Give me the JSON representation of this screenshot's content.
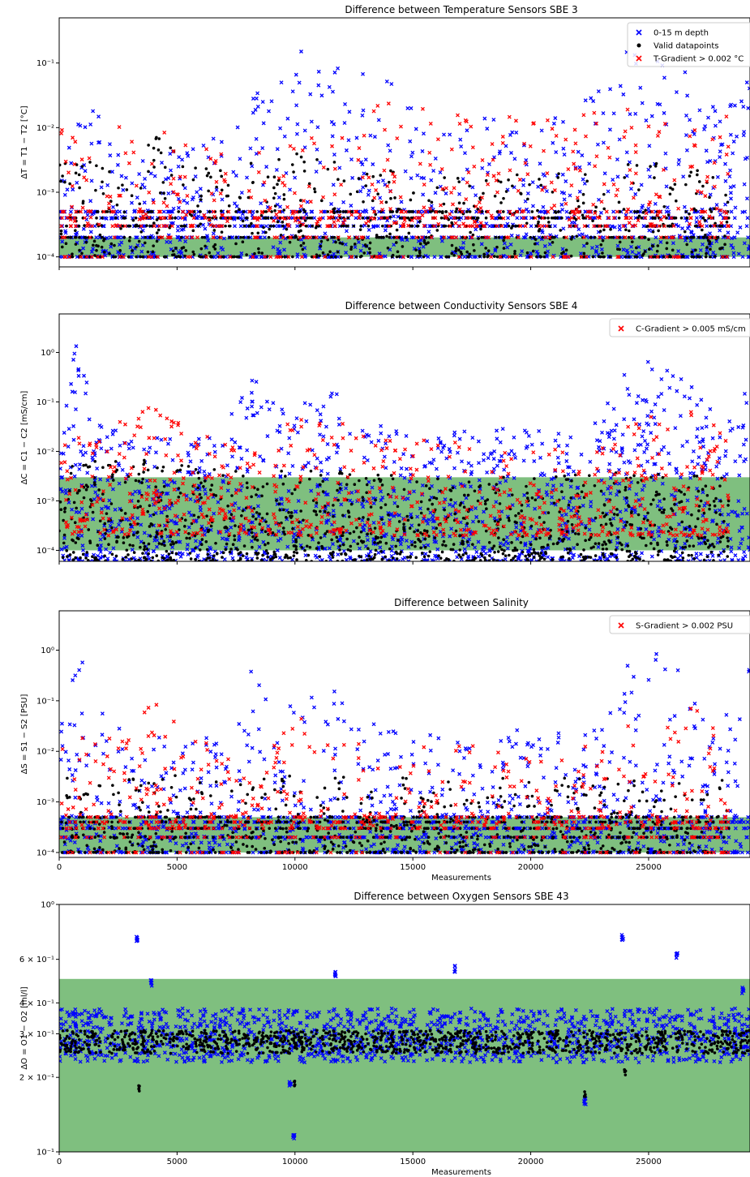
{
  "chart_data": [
    {
      "type": "scatter",
      "title": "Difference between Temperature Sensors SBE 3",
      "ylabel": "ΔT = T1 − T2 [°C]",
      "xlabel": "",
      "xlim": [
        0,
        29300
      ],
      "ylim": [
        7e-05,
        0.5
      ],
      "yscale": "log",
      "yticks": [
        0.0001,
        0.001,
        0.01,
        0.1
      ],
      "ytick_labels": [
        "10⁻⁴",
        "10⁻³",
        "10⁻²",
        "10⁻¹"
      ],
      "xtick_labels_shown": false,
      "band": {
        "from": 0.0001,
        "to": 0.0002,
        "color": "#7fbf7f"
      },
      "legend": {
        "position": "top-right",
        "entries": [
          {
            "label": "0-15 m depth",
            "marker": "x",
            "color": "#0000ff"
          },
          {
            "label": "Valid datapoints",
            "marker": "dot",
            "color": "#000000"
          },
          {
            "label": "T-Gradient > 0.002 °C",
            "marker": "x",
            "color": "#ff0000"
          }
        ]
      },
      "series": [
        {
          "role": "surface",
          "color": "#0000ff",
          "marker": "x",
          "envelope": [
            [
              0,
              0.03
            ],
            [
              1500,
              0.02
            ],
            [
              3000,
              0.004
            ],
            [
              5000,
              0.005
            ],
            [
              7000,
              0.008
            ],
            [
              8000,
              0.06
            ],
            [
              9000,
              0.03
            ],
            [
              10000,
              0.2
            ],
            [
              12000,
              0.1
            ],
            [
              13500,
              0.1
            ],
            [
              15000,
              0.02
            ],
            [
              17000,
              0.02
            ],
            [
              20000,
              0.015
            ],
            [
              22000,
              0.02
            ],
            [
              24000,
              0.15
            ],
            [
              25500,
              0.2
            ],
            [
              27000,
              0.05
            ],
            [
              28000,
              0.02
            ],
            [
              29300,
              0.08
            ]
          ],
          "floor": 0.0001
        },
        {
          "role": "valid",
          "color": "#000000",
          "marker": "dot",
          "envelope": [
            [
              0,
              0.004
            ],
            [
              3000,
              0.002
            ],
            [
              4000,
              0.008
            ],
            [
              6000,
              0.003
            ],
            [
              8000,
              0.003
            ],
            [
              10000,
              0.004
            ],
            [
              12000,
              0.003
            ],
            [
              15000,
              0.002
            ],
            [
              20000,
              0.002
            ],
            [
              25000,
              0.003
            ],
            [
              28200,
              0.002
            ]
          ],
          "floor": 0.0001
        },
        {
          "role": "gradient",
          "color": "#ff0000",
          "marker": "x",
          "envelope": [
            [
              0,
              0.01
            ],
            [
              2000,
              0.01
            ],
            [
              4000,
              0.015
            ],
            [
              6000,
              0.005
            ],
            [
              8000,
              0.004
            ],
            [
              10000,
              0.006
            ],
            [
              12000,
              0.01
            ],
            [
              14000,
              0.03
            ],
            [
              16000,
              0.02
            ],
            [
              18000,
              0.03
            ],
            [
              20000,
              0.02
            ],
            [
              22000,
              0.04
            ],
            [
              24000,
              0.02
            ],
            [
              26000,
              0.015
            ],
            [
              28000,
              0.02
            ]
          ],
          "floor": 0.0003
        }
      ]
    },
    {
      "type": "scatter",
      "title": "Difference between Conductivity Sensors SBE 4",
      "ylabel": "ΔC = C1 − C2 [mS/cm]",
      "xlabel": "",
      "xlim": [
        0,
        29300
      ],
      "ylim": [
        6e-05,
        6
      ],
      "yscale": "log",
      "yticks": [
        0.0001,
        0.001,
        0.01,
        0.1,
        1
      ],
      "ytick_labels": [
        "10⁻⁴",
        "10⁻³",
        "10⁻²",
        "10⁻¹",
        "10⁰"
      ],
      "xtick_labels_shown": false,
      "band": {
        "from": 0.0001,
        "to": 0.003,
        "color": "#7fbf7f"
      },
      "legend": {
        "position": "top-right",
        "entries": [
          {
            "label": "C-Gradient > 0.005 mS/cm",
            "marker": "x",
            "color": "#ff0000"
          }
        ]
      },
      "series": [
        {
          "role": "surface",
          "color": "#0000ff",
          "marker": "x",
          "envelope": [
            [
              0,
              0.05
            ],
            [
              800,
              2.0
            ],
            [
              1500,
              0.05
            ],
            [
              3000,
              0.02
            ],
            [
              5000,
              0.02
            ],
            [
              7000,
              0.02
            ],
            [
              8000,
              0.6
            ],
            [
              9000,
              0.1
            ],
            [
              10000,
              0.1
            ],
            [
              12000,
              0.2
            ],
            [
              13000,
              0.05
            ],
            [
              15000,
              0.02
            ],
            [
              18000,
              0.03
            ],
            [
              20000,
              0.03
            ],
            [
              22000,
              0.02
            ],
            [
              24000,
              0.5
            ],
            [
              25500,
              0.8
            ],
            [
              27000,
              0.3
            ],
            [
              28000,
              0.05
            ],
            [
              29300,
              0.5
            ]
          ],
          "floor": 6e-05
        },
        {
          "role": "valid",
          "color": "#000000",
          "marker": "dot",
          "envelope": [
            [
              0,
              0.005
            ],
            [
              3000,
              0.008
            ],
            [
              6000,
              0.005
            ],
            [
              8000,
              0.004
            ],
            [
              12000,
              0.004
            ],
            [
              15000,
              0.003
            ],
            [
              20000,
              0.003
            ],
            [
              25000,
              0.004
            ],
            [
              28000,
              0.003
            ]
          ],
          "floor": 6e-05
        },
        {
          "role": "gradient",
          "color": "#ff0000",
          "marker": "x",
          "envelope": [
            [
              0,
              0.02
            ],
            [
              2000,
              0.03
            ],
            [
              4000,
              0.1
            ],
            [
              6000,
              0.02
            ],
            [
              8000,
              0.02
            ],
            [
              10000,
              0.05
            ],
            [
              12000,
              0.05
            ],
            [
              14000,
              0.02
            ],
            [
              17000,
              0.02
            ],
            [
              20000,
              0.01
            ],
            [
              23000,
              0.02
            ],
            [
              25000,
              0.05
            ],
            [
              27000,
              0.1
            ],
            [
              28000,
              0.03
            ]
          ],
          "floor": 0.0002
        }
      ]
    },
    {
      "type": "scatter",
      "title": "Difference between Salinity",
      "ylabel": "ΔS = S1 − S2 [PSU]",
      "xlabel": "Measurements",
      "xlim": [
        0,
        29300
      ],
      "ylim": [
        8e-05,
        6
      ],
      "yscale": "log",
      "yticks": [
        0.0001,
        0.001,
        0.01,
        0.1,
        1
      ],
      "ytick_labels": [
        "10⁻⁴",
        "10⁻³",
        "10⁻²",
        "10⁻¹",
        "10⁰"
      ],
      "xticks": [
        0,
        5000,
        10000,
        15000,
        20000,
        25000
      ],
      "xtick_labels": [
        "0",
        "5000",
        "10000",
        "15000",
        "20000",
        "25000"
      ],
      "band": {
        "from": 0.0001,
        "to": 0.0005,
        "color": "#7fbf7f"
      },
      "legend": {
        "position": "top-right",
        "entries": [
          {
            "label": "S-Gradient > 0.002 PSU",
            "marker": "x",
            "color": "#ff0000"
          }
        ]
      },
      "series": [
        {
          "role": "surface",
          "color": "#0000ff",
          "marker": "x",
          "envelope": [
            [
              0,
              0.02
            ],
            [
              800,
              2.5
            ],
            [
              1500,
              0.1
            ],
            [
              3000,
              0.02
            ],
            [
              5000,
              0.02
            ],
            [
              7000,
              0.02
            ],
            [
              8000,
              0.6
            ],
            [
              9000,
              0.1
            ],
            [
              10000,
              0.1
            ],
            [
              12000,
              0.2
            ],
            [
              13000,
              0.05
            ],
            [
              15000,
              0.02
            ],
            [
              18000,
              0.03
            ],
            [
              20000,
              0.03
            ],
            [
              22000,
              0.02
            ],
            [
              24000,
              0.5
            ],
            [
              25500,
              1.0
            ],
            [
              27000,
              0.3
            ],
            [
              28000,
              0.05
            ],
            [
              29300,
              0.5
            ]
          ],
          "floor": 0.0001
        },
        {
          "role": "valid",
          "color": "#000000",
          "marker": "dot",
          "envelope": [
            [
              0,
              0.003
            ],
            [
              3000,
              0.004
            ],
            [
              6000,
              0.003
            ],
            [
              8000,
              0.003
            ],
            [
              12000,
              0.004
            ],
            [
              15000,
              0.003
            ],
            [
              20000,
              0.003
            ],
            [
              25000,
              0.003
            ],
            [
              28000,
              0.003
            ]
          ],
          "floor": 0.0001
        },
        {
          "role": "gradient",
          "color": "#ff0000",
          "marker": "x",
          "envelope": [
            [
              0,
              0.03
            ],
            [
              2000,
              0.02
            ],
            [
              4000,
              0.1
            ],
            [
              6000,
              0.02
            ],
            [
              8000,
              0.02
            ],
            [
              10000,
              0.05
            ],
            [
              12000,
              0.05
            ],
            [
              14000,
              0.01
            ],
            [
              17000,
              0.02
            ],
            [
              20000,
              0.01
            ],
            [
              23000,
              0.02
            ],
            [
              25000,
              0.05
            ],
            [
              27000,
              0.1
            ],
            [
              28000,
              0.03
            ]
          ],
          "floor": 0.0003
        }
      ]
    },
    {
      "type": "scatter",
      "title": "Difference between Oxygen Sensors SBE 43",
      "ylabel": "ΔO = O1 − O2 [ml/l]",
      "xlabel": "Measurements",
      "xlim": [
        0,
        29300
      ],
      "ylim": [
        0.1,
        1.0
      ],
      "yscale": "log",
      "yticks": [
        0.1,
        0.2,
        0.3,
        0.4,
        0.6,
        1.0
      ],
      "ytick_labels": [
        "10⁻¹",
        "2 × 10⁻¹",
        "3 × 10⁻¹",
        "4 × 10⁻¹",
        "6 × 10⁻¹",
        "10⁰"
      ],
      "xticks": [
        0,
        5000,
        10000,
        15000,
        20000,
        25000
      ],
      "xtick_labels": [
        "0",
        "5000",
        "10000",
        "15000",
        "20000",
        "25000"
      ],
      "band": {
        "from": 0.1,
        "to": 0.5,
        "color": "#7fbf7f"
      },
      "series": [
        {
          "role": "surface",
          "color": "#0000ff",
          "marker": "x",
          "baseline": 0.29,
          "spread_up": 0.38,
          "spread_down": 0.23,
          "spikes": [
            [
              3300,
              0.72
            ],
            [
              3900,
              0.48
            ],
            [
              9800,
              0.19
            ],
            [
              9950,
              0.115
            ],
            [
              11700,
              0.52
            ],
            [
              16800,
              0.55
            ],
            [
              22300,
              0.16
            ],
            [
              23900,
              0.74
            ],
            [
              26200,
              0.62
            ],
            [
              29000,
              0.45
            ]
          ]
        },
        {
          "role": "valid",
          "color": "#000000",
          "marker": "dot",
          "baseline": 0.28,
          "spread_up": 0.31,
          "spread_down": 0.25,
          "dips": [
            [
              3400,
              0.18
            ],
            [
              10000,
              0.19
            ],
            [
              22300,
              0.17
            ],
            [
              24000,
              0.21
            ]
          ]
        }
      ]
    }
  ]
}
